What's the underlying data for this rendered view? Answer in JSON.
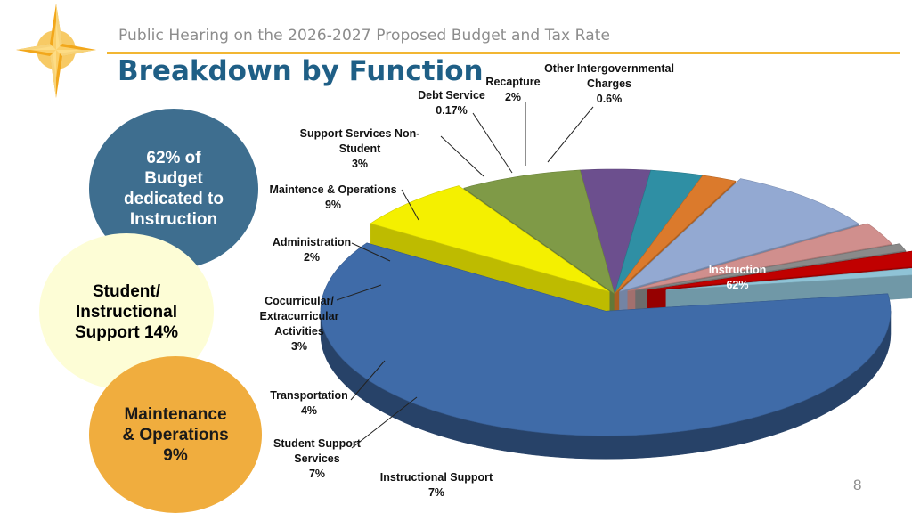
{
  "header": {
    "subtitle": "Public Hearing on the 2026-2027 Proposed Budget and Tax Rate",
    "title": "Breakdown by Function"
  },
  "callouts": [
    {
      "text": "62% of\nBudget\ndedicated to\nInstruction",
      "color": "#3e6e8f"
    },
    {
      "text": "Student/\nInstructional\nSupport 14%",
      "color": "#fdfdd6"
    },
    {
      "text": "Maintenance\n& Operations\n9%",
      "color": "#f0ad3e"
    }
  ],
  "page_number": "8",
  "chart_data": {
    "type": "pie",
    "style": "3d-exploded",
    "slices": [
      {
        "label": "Instruction",
        "value_label": "62%",
        "value": 62,
        "color": "#3f6ba8"
      },
      {
        "label": "Instructional Support",
        "value_label": "7%",
        "value": 7,
        "color": "#f4f000"
      },
      {
        "label": "Student Support Services",
        "value_label": "7%",
        "value": 7,
        "color": "#7f9a47"
      },
      {
        "label": "Transportation",
        "value_label": "4%",
        "value": 4,
        "color": "#6c4f8e"
      },
      {
        "label": "Cocurricular/ Extracurricular Activities",
        "value_label": "3%",
        "value": 3,
        "color": "#2f8fa4"
      },
      {
        "label": "Administration",
        "value_label": "2%",
        "value": 2,
        "color": "#db7a2c"
      },
      {
        "label": "Maintence & Operations",
        "value_label": "9%",
        "value": 9,
        "color": "#93a9d2"
      },
      {
        "label": "Support Services Non-Student",
        "value_label": "3%",
        "value": 3,
        "color": "#d08f8d"
      },
      {
        "label": "Debt Service",
        "value_label": "0.17%",
        "value": 0.17,
        "color": "#8a8a8a"
      },
      {
        "label": "Recapture",
        "value_label": "2%",
        "value": 2,
        "color": "#c00000"
      },
      {
        "label": "Other Intergovernmental Charges",
        "value_label": "0.6%",
        "value": 0.6,
        "color": "#8fc3d6"
      }
    ]
  }
}
